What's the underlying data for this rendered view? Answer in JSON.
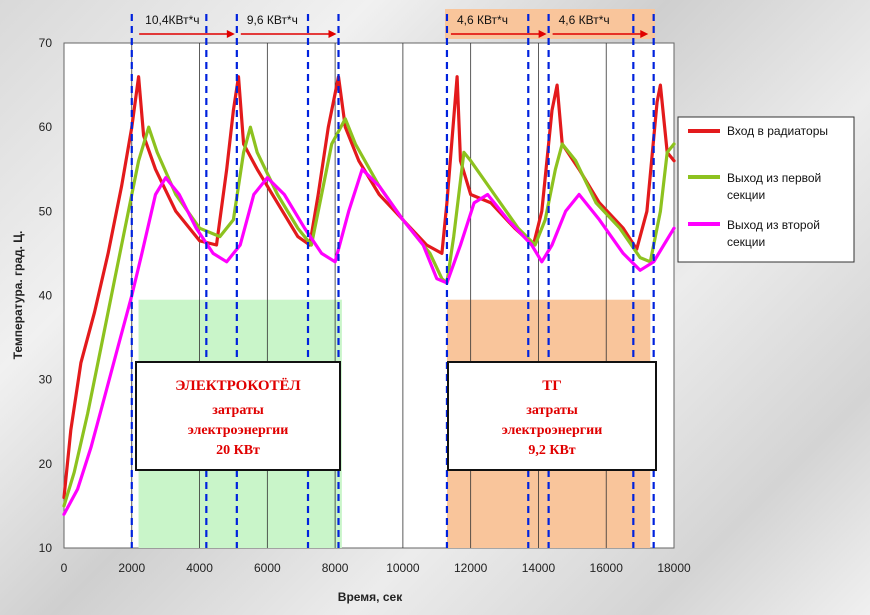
{
  "chart_data": {
    "type": "line",
    "xlabel": "Время, сек",
    "ylabel": "Температура. град. Ц.",
    "xlim": [
      0,
      18000
    ],
    "ylim": [
      10,
      70
    ],
    "xticks": [
      0,
      2000,
      4000,
      6000,
      8000,
      10000,
      12000,
      14000,
      16000,
      18000
    ],
    "xtick_labels": [
      "0",
      "2000",
      "4000",
      "6000",
      "8000",
      "10000",
      "12000",
      "14000",
      "16000",
      "18000"
    ],
    "yticks": [
      10,
      20,
      30,
      40,
      50,
      60,
      70
    ],
    "ytick_labels": [
      "10",
      "20",
      "30",
      "40",
      "50",
      "60",
      "70"
    ],
    "grid": "vertical",
    "legend_position": "right",
    "series": [
      {
        "name": "Вход в радиаторы",
        "color": "#e31a1c",
        "points": [
          [
            0,
            16
          ],
          [
            200,
            24
          ],
          [
            500,
            32
          ],
          [
            900,
            38
          ],
          [
            1300,
            45
          ],
          [
            1700,
            53
          ],
          [
            2000,
            60
          ],
          [
            2200,
            66
          ],
          [
            2350,
            59
          ],
          [
            2700,
            55
          ],
          [
            3300,
            50
          ],
          [
            4000,
            46.5
          ],
          [
            4500,
            46
          ],
          [
            4800,
            55
          ],
          [
            5000,
            62
          ],
          [
            5150,
            66
          ],
          [
            5300,
            58
          ],
          [
            5700,
            55
          ],
          [
            6300,
            51
          ],
          [
            6900,
            47
          ],
          [
            7250,
            46
          ],
          [
            7500,
            52
          ],
          [
            7800,
            60
          ],
          [
            8100,
            66
          ],
          [
            8300,
            60
          ],
          [
            8700,
            56
          ],
          [
            9300,
            52
          ],
          [
            10000,
            49
          ],
          [
            10700,
            46
          ],
          [
            11150,
            45
          ],
          [
            11300,
            51
          ],
          [
            11600,
            66
          ],
          [
            11700,
            56
          ],
          [
            12000,
            52
          ],
          [
            12600,
            51
          ],
          [
            13300,
            48
          ],
          [
            13850,
            46
          ],
          [
            14100,
            50
          ],
          [
            14400,
            62
          ],
          [
            14550,
            65
          ],
          [
            14700,
            58
          ],
          [
            15200,
            55
          ],
          [
            15800,
            51
          ],
          [
            16500,
            48
          ],
          [
            16900,
            45.5
          ],
          [
            17200,
            50
          ],
          [
            17500,
            63
          ],
          [
            17600,
            65
          ],
          [
            17800,
            57
          ],
          [
            18000,
            56
          ]
        ]
      },
      {
        "name": "Выход из первой секции",
        "color": "#8dc21f",
        "points": [
          [
            0,
            15
          ],
          [
            300,
            19
          ],
          [
            700,
            26
          ],
          [
            1100,
            34
          ],
          [
            1500,
            42
          ],
          [
            1900,
            50
          ],
          [
            2200,
            56
          ],
          [
            2500,
            60
          ],
          [
            2750,
            57
          ],
          [
            3300,
            52
          ],
          [
            4000,
            48
          ],
          [
            4600,
            47
          ],
          [
            5000,
            49
          ],
          [
            5300,
            57
          ],
          [
            5500,
            60
          ],
          [
            5700,
            57
          ],
          [
            6300,
            52
          ],
          [
            6900,
            48
          ],
          [
            7300,
            46
          ],
          [
            7600,
            52
          ],
          [
            7900,
            58
          ],
          [
            8300,
            61
          ],
          [
            8600,
            58
          ],
          [
            9300,
            53
          ],
          [
            10000,
            49
          ],
          [
            10800,
            45
          ],
          [
            11150,
            42
          ],
          [
            11300,
            41.5
          ],
          [
            11500,
            47
          ],
          [
            11800,
            57
          ],
          [
            12000,
            56
          ],
          [
            12700,
            52
          ],
          [
            13400,
            48
          ],
          [
            13900,
            46
          ],
          [
            14200,
            49
          ],
          [
            14500,
            55
          ],
          [
            14700,
            58
          ],
          [
            15100,
            56
          ],
          [
            15700,
            51
          ],
          [
            16400,
            48
          ],
          [
            17000,
            44.5
          ],
          [
            17300,
            44
          ],
          [
            17600,
            50
          ],
          [
            17800,
            57
          ],
          [
            18000,
            58
          ]
        ]
      },
      {
        "name": "Выход из второй секции",
        "color": "#ff00ff",
        "points": [
          [
            0,
            14
          ],
          [
            400,
            17
          ],
          [
            800,
            22
          ],
          [
            1200,
            28
          ],
          [
            1600,
            34
          ],
          [
            2000,
            40
          ],
          [
            2300,
            45
          ],
          [
            2700,
            52
          ],
          [
            3000,
            54
          ],
          [
            3400,
            52
          ],
          [
            3900,
            48
          ],
          [
            4400,
            45
          ],
          [
            4800,
            44
          ],
          [
            5200,
            46
          ],
          [
            5600,
            52
          ],
          [
            6000,
            54
          ],
          [
            6500,
            52
          ],
          [
            7100,
            48
          ],
          [
            7600,
            45
          ],
          [
            8000,
            44
          ],
          [
            8400,
            50
          ],
          [
            8800,
            55
          ],
          [
            9300,
            53
          ],
          [
            10000,
            49
          ],
          [
            10600,
            46
          ],
          [
            11000,
            42
          ],
          [
            11300,
            41.5
          ],
          [
            11700,
            46
          ],
          [
            12100,
            51
          ],
          [
            12500,
            52
          ],
          [
            13100,
            49
          ],
          [
            13800,
            46
          ],
          [
            14100,
            44
          ],
          [
            14400,
            46
          ],
          [
            14800,
            50
          ],
          [
            15200,
            52
          ],
          [
            15800,
            49
          ],
          [
            16500,
            45
          ],
          [
            17000,
            43
          ],
          [
            17400,
            44
          ],
          [
            17700,
            46
          ],
          [
            18000,
            48
          ]
        ]
      }
    ],
    "dashed_lines_x": [
      2000,
      4200,
      5100,
      7200,
      8100,
      11300,
      13700,
      14300,
      16800,
      17400
    ],
    "shaded_regions": [
      {
        "x": [
          2200,
          8200
        ],
        "y": [
          10,
          39.5
        ],
        "color": "#c9f5c9"
      },
      {
        "x": [
          11300,
          17300
        ],
        "y": [
          10,
          39.5
        ],
        "color": "#f9c59b"
      }
    ],
    "energy_labels": [
      {
        "text": "10,4КВт*ч",
        "x_range": [
          2100,
          5100
        ]
      },
      {
        "text": "9,6 КВт*ч",
        "x_range": [
          5100,
          8100
        ]
      },
      {
        "text": "4,6 КВт*ч",
        "x_range": [
          11300,
          14300
        ]
      },
      {
        "text": "4,6 КВт*ч",
        "x_range": [
          14300,
          17300
        ]
      }
    ],
    "annotations": [
      {
        "title": "ЭЛЕКТРОКОТЁЛ",
        "lines": [
          "затраты",
          "электроэнергии",
          "20 КВт"
        ]
      },
      {
        "title": "ТГ",
        "lines": [
          "затраты",
          "электроэнергии",
          "9,2 КВт"
        ]
      }
    ]
  }
}
